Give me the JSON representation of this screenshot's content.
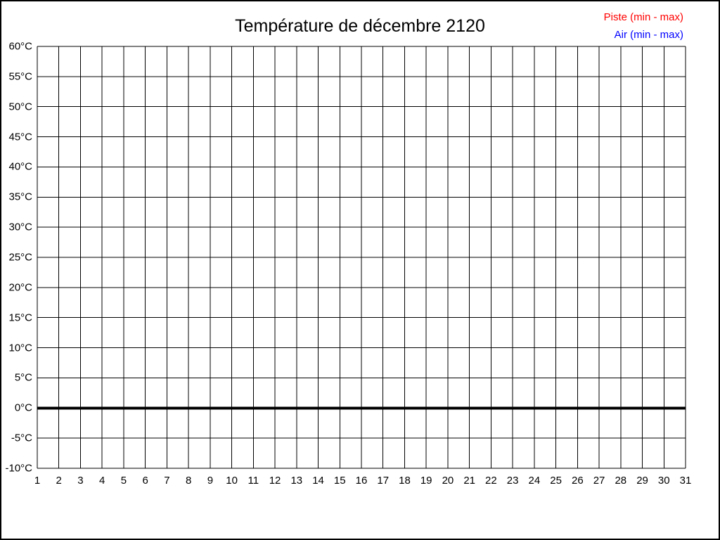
{
  "chart_data": {
    "type": "line",
    "title": "Température de décembre 2120",
    "xlabel": "",
    "ylabel": "",
    "xlim": [
      1,
      31
    ],
    "ylim": [
      -10,
      60
    ],
    "grid": true,
    "grid_color": "#000000",
    "background_color": "#ffffff",
    "legend_position": "top-right",
    "xtick_values": [
      1,
      2,
      3,
      4,
      5,
      6,
      7,
      8,
      9,
      10,
      11,
      12,
      13,
      14,
      15,
      16,
      17,
      18,
      19,
      20,
      21,
      22,
      23,
      24,
      25,
      26,
      27,
      28,
      29,
      30,
      31
    ],
    "xtick_labels": [
      "1",
      "2",
      "3",
      "4",
      "5",
      "6",
      "7",
      "8",
      "9",
      "10",
      "11",
      "12",
      "13",
      "14",
      "15",
      "16",
      "17",
      "18",
      "19",
      "20",
      "21",
      "22",
      "23",
      "24",
      "25",
      "26",
      "27",
      "28",
      "29",
      "30",
      "31"
    ],
    "ytick_values": [
      60,
      55,
      50,
      45,
      40,
      35,
      30,
      25,
      20,
      15,
      10,
      5,
      0,
      -5,
      -10
    ],
    "ytick_labels": [
      "60°C",
      "55°C",
      "50°C",
      "45°C",
      "40°C",
      "35°C",
      "30°C",
      "25°C",
      "20°C",
      "15°C",
      "10°C",
      "5°C",
      "0°C",
      "-5°C",
      "-10°C"
    ],
    "zero_line": {
      "value": 0,
      "color": "#000000",
      "width": 4
    },
    "legend": [
      {
        "label": "Piste (min - max)",
        "color": "#ff0000"
      },
      {
        "label": "Air (min - max)",
        "color": "#0000ff"
      }
    ],
    "series": [
      {
        "name": "Piste (min - max)",
        "color": "#ff0000",
        "x": [],
        "values": []
      },
      {
        "name": "Air (min - max)",
        "color": "#0000ff",
        "x": [],
        "values": []
      }
    ]
  }
}
